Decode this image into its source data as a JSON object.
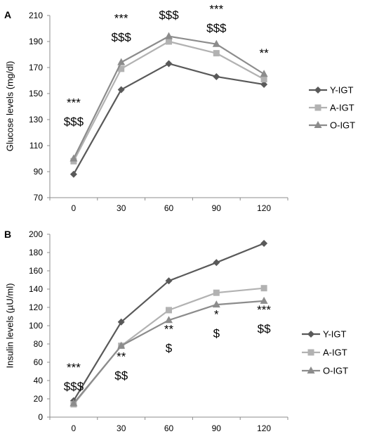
{
  "chart_data": [
    {
      "panel_label": "A",
      "type": "line",
      "ylabel": "Glucose levels (mg/dl)",
      "xlabel": "",
      "categories": [
        "0",
        "30",
        "60",
        "90",
        "120"
      ],
      "ylim": [
        70,
        210
      ],
      "y_ticks": [
        "70",
        "90",
        "110",
        "130",
        "150",
        "170",
        "190",
        "210"
      ],
      "series": [
        {
          "name": "Y-IGT",
          "values": [
            88,
            153,
            173,
            163,
            157
          ],
          "color": "#595959",
          "marker": "diamond"
        },
        {
          "name": "A-IGT",
          "values": [
            98,
            169,
            190,
            181,
            161
          ],
          "color": "#b2b2b2",
          "marker": "square"
        },
        {
          "name": "O-IGT",
          "values": [
            100,
            174,
            194,
            188,
            165
          ],
          "color": "#8c8c8c",
          "marker": "triangle"
        }
      ],
      "annotations": [
        {
          "category": "0",
          "lines": [
            "***",
            "$$$"
          ],
          "y_value": 140
        },
        {
          "category": "30",
          "lines": [
            "***",
            "$$$"
          ],
          "y_value": 205
        },
        {
          "category": "60",
          "lines": [
            "***",
            "$$$"
          ],
          "y_value": 222
        },
        {
          "category": "90",
          "lines": [
            "***",
            "$$$"
          ],
          "y_value": 212
        },
        {
          "category": "120",
          "lines": [
            "**"
          ],
          "y_value": 178
        }
      ],
      "legend_position": "right"
    },
    {
      "panel_label": "B",
      "type": "line",
      "ylabel": "Insulin levels (µU/ml)",
      "xlabel": "",
      "categories": [
        "0",
        "30",
        "60",
        "90",
        "120"
      ],
      "ylim": [
        0,
        200
      ],
      "y_ticks": [
        "0",
        "20",
        "40",
        "60",
        "80",
        "100",
        "120",
        "140",
        "160",
        "180",
        "200"
      ],
      "series": [
        {
          "name": "Y-IGT",
          "values": [
            18,
            104,
            149,
            169,
            190
          ],
          "color": "#595959",
          "marker": "diamond"
        },
        {
          "name": "A-IGT",
          "values": [
            14,
            78,
            117,
            136,
            141
          ],
          "color": "#b2b2b2",
          "marker": "square"
        },
        {
          "name": "O-IGT",
          "values": [
            15,
            78,
            106,
            123,
            127
          ],
          "color": "#8c8c8c",
          "marker": "triangle"
        }
      ],
      "annotations": [
        {
          "category": "0",
          "lines": [
            "***",
            "$$$"
          ],
          "y_value": 50
        },
        {
          "category": "30",
          "lines": [
            "**",
            "$$"
          ],
          "y_value": 62
        },
        {
          "category": "60",
          "lines": [
            "**",
            "$"
          ],
          "y_value": 92
        },
        {
          "category": "90",
          "lines": [
            "*",
            "$"
          ],
          "y_value": 108
        },
        {
          "category": "120",
          "lines": [
            "***",
            "$$"
          ],
          "y_value": 113
        }
      ],
      "legend_position": "right"
    }
  ]
}
